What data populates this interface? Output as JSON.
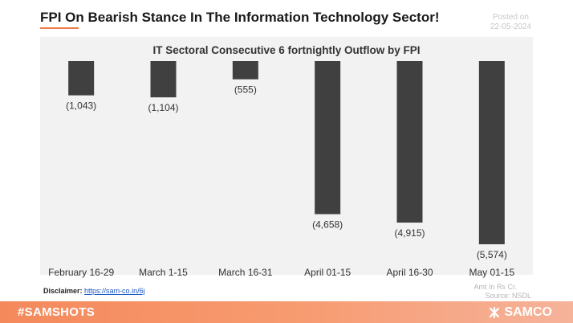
{
  "header": {
    "title": "FPI On Bearish Stance In The Information Technology Sector!",
    "posted_label": "Posted on",
    "posted_date": "22-05-2024"
  },
  "footer": {
    "disclaimer_label": "Disclaimer:",
    "disclaimer_link": "https://sam-co.in/6j",
    "amt_note": "Amt In Rs Cr.",
    "source_note": "Source: NSDL",
    "hashtag": "#SAMSHOTS",
    "brand": "SAMCO"
  },
  "colors": {
    "bar": "#404040",
    "plot_bg": "#f2f2f2",
    "accent": "#f4895c"
  },
  "chart_data": {
    "type": "bar",
    "title": "IT Sectoral Consecutive 6 fortnightly Outflow by FPI",
    "categories": [
      "February 16-29",
      "March 1-15",
      "March 16-31",
      "April 01-15",
      "April 16-30",
      "May 01-15"
    ],
    "values": [
      -1043,
      -1104,
      -555,
      -4658,
      -4915,
      -5574
    ],
    "value_labels": [
      "(1,043)",
      "(1,104)",
      "(555)",
      "(4,658)",
      "(4,915)",
      "(5,574)"
    ],
    "ylim": [
      -5574,
      0
    ],
    "xlabel": "",
    "ylabel": "",
    "grid": false,
    "legend": "none"
  }
}
